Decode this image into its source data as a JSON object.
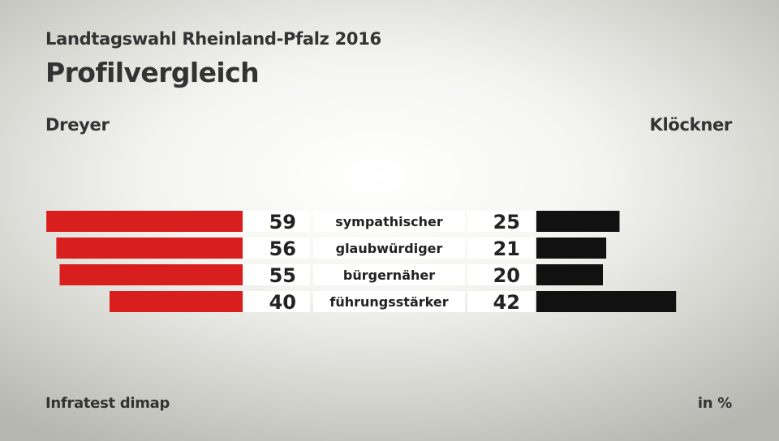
{
  "header": {
    "supertitle": "Landtagswahl Rheinland-Pfalz 2016",
    "title": "Profilvergleich"
  },
  "footer": {
    "source": "Infratest dimap",
    "unit": "in %"
  },
  "colors": {
    "left": "#d91e1e",
    "right": "#111111",
    "cell": "#ffffff"
  },
  "chart_data": {
    "type": "bar",
    "title": "Profilvergleich",
    "categories": [
      "sympathischer",
      "glaubwürdiger",
      "bürgernäher",
      "führungsstärker"
    ],
    "series": [
      {
        "name": "Dreyer",
        "values": [
          59,
          56,
          55,
          40
        ]
      },
      {
        "name": "Klöckner",
        "values": [
          25,
          21,
          20,
          42
        ]
      }
    ],
    "unit": "in %"
  }
}
